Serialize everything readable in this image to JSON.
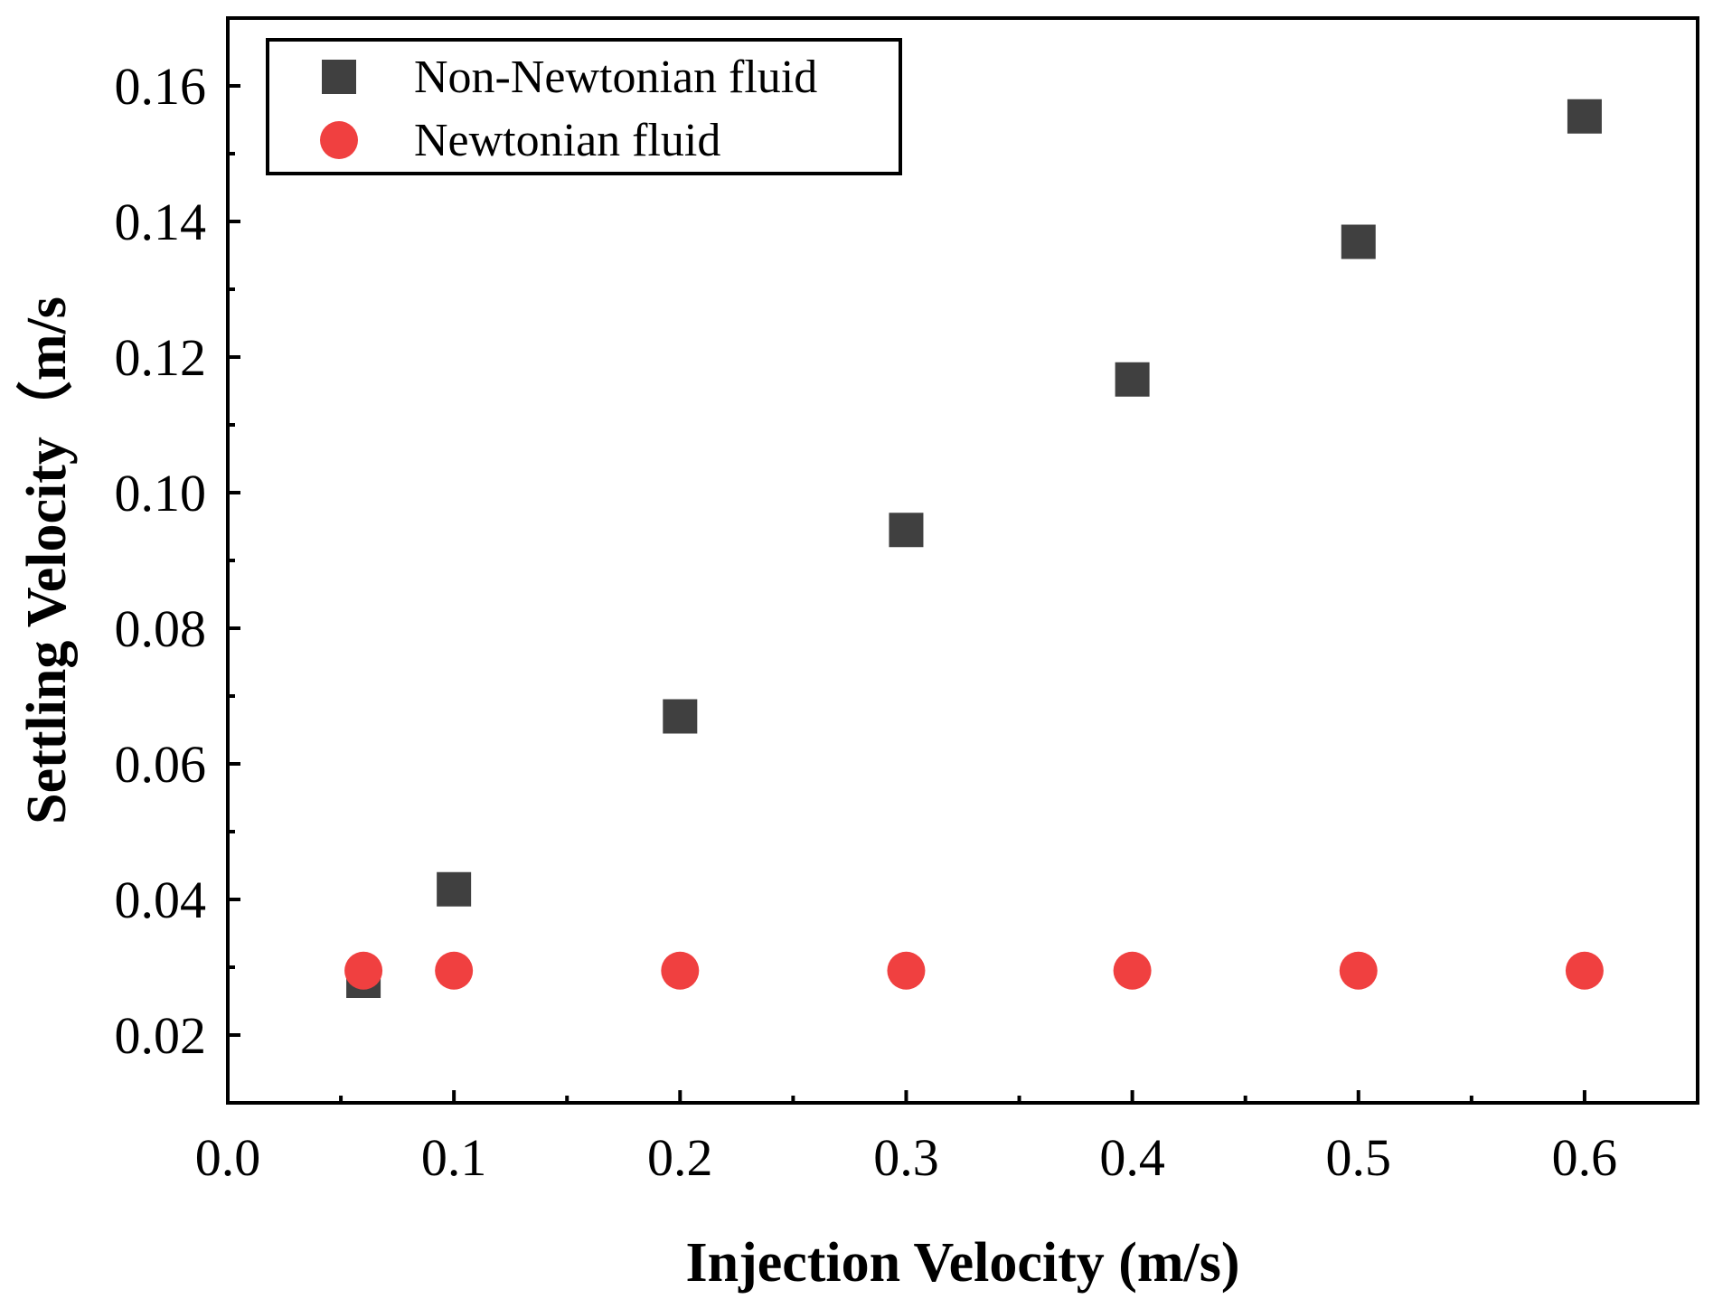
{
  "chart_data": {
    "type": "scatter",
    "title": "",
    "xlabel": "Injection Velocity (m/s)",
    "ylabel": "Settling Velocity（m/s",
    "xlim": [
      0.0,
      0.65
    ],
    "ylim": [
      0.01,
      0.17
    ],
    "xticks": [
      "0.0",
      "0.1",
      "0.2",
      "0.3",
      "0.4",
      "0.5",
      "0.6"
    ],
    "yticks": [
      "0.02",
      "0.04",
      "0.06",
      "0.08",
      "0.10",
      "0.12",
      "0.14",
      "0.16"
    ],
    "grid": false,
    "legend_position": "top-left",
    "series": [
      {
        "name": "Non-Newtonian fluid",
        "marker": "square",
        "color": "#404040",
        "x": [
          0.06,
          0.1,
          0.2,
          0.3,
          0.4,
          0.5,
          0.6
        ],
        "y": [
          0.028,
          0.0415,
          0.067,
          0.0945,
          0.1167,
          0.137,
          0.1555
        ]
      },
      {
        "name": "Newtonian fluid",
        "marker": "circle",
        "color": "#f04040",
        "x": [
          0.06,
          0.1,
          0.2,
          0.3,
          0.4,
          0.5,
          0.6
        ],
        "y": [
          0.0295,
          0.0295,
          0.0295,
          0.0295,
          0.0295,
          0.0295,
          0.0295
        ]
      }
    ]
  }
}
